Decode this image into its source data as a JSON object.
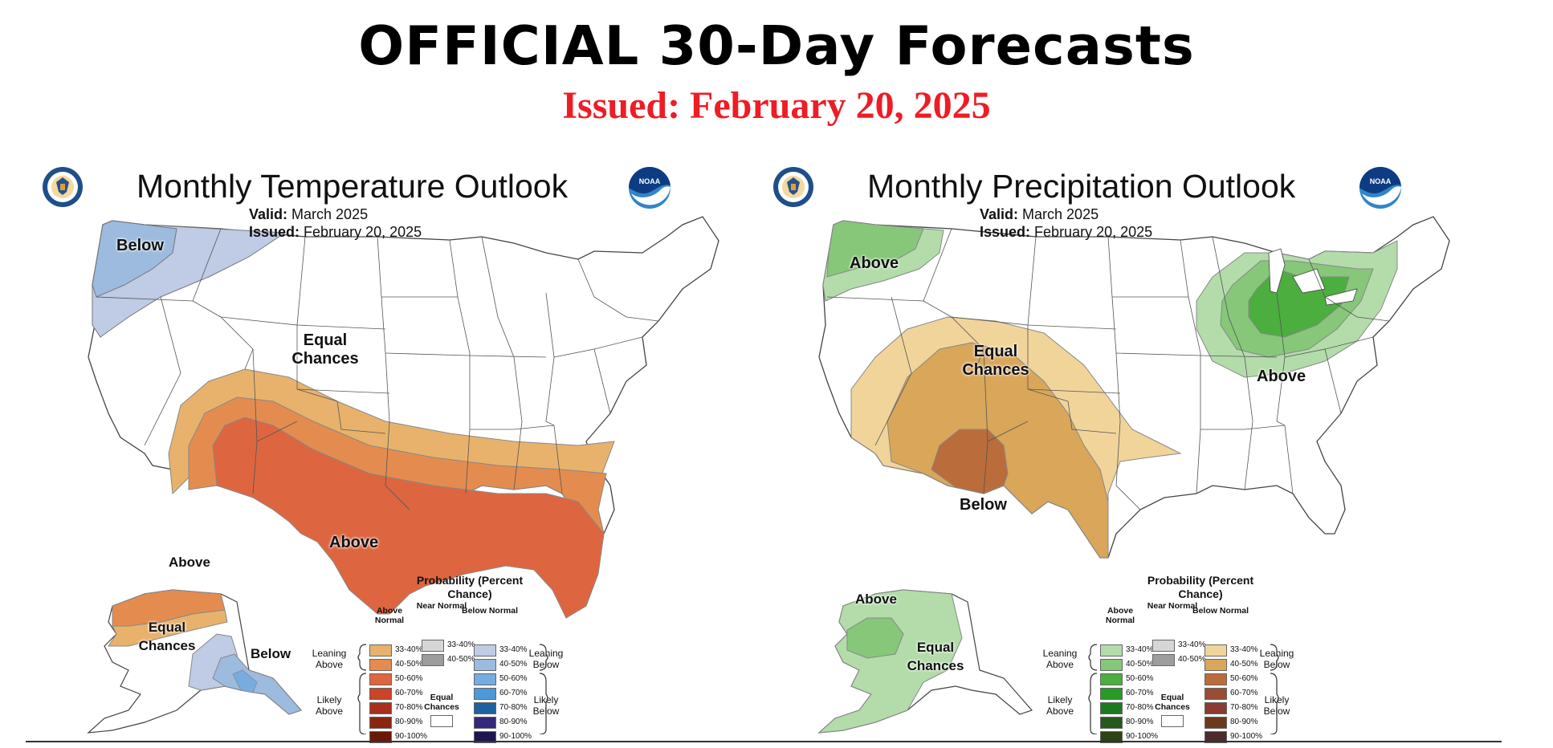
{
  "header": {
    "title": "OFFICIAL 30-Day Forecasts",
    "issued": "Issued: February 20, 2025",
    "issued_color": "#ee1c25"
  },
  "panels": [
    {
      "title": "Monthly Temperature Outlook",
      "valid_label": "Valid:",
      "valid_value": "March 2025",
      "issued_label": "Issued:",
      "issued_value": "February 20, 2025",
      "logos": [
        "doc-seal-icon",
        "noaa-logo-icon"
      ],
      "region_labels": {
        "nw": "Below",
        "center": "Equal Chances",
        "south": "Above",
        "ak_north": "Above",
        "ak_west": "Equal Chances",
        "ak_south": "Below"
      },
      "legend": {
        "title": "Probability (Percent Chance)",
        "col_above": "Above Normal",
        "col_near": "Near Normal",
        "col_below": "Below Normal",
        "leaning_above": "Leaning Above",
        "likely_above": "Likely Above",
        "leaning_below": "Leaning Below",
        "likely_below": "Likely Below",
        "equal": "Equal Chances",
        "above_swatches": [
          {
            "range": "33-40%",
            "color": "#e8b26c"
          },
          {
            "range": "40-50%",
            "color": "#e48c4f"
          },
          {
            "range": "50-60%",
            "color": "#dd6640"
          },
          {
            "range": "60-70%",
            "color": "#c94429"
          },
          {
            "range": "70-80%",
            "color": "#a8301b"
          },
          {
            "range": "80-90%",
            "color": "#8a2510"
          },
          {
            "range": "90-100%",
            "color": "#6b1806"
          }
        ],
        "near_swatches": [
          {
            "range": "33-40%",
            "color": "#d6d6d6"
          },
          {
            "range": "40-50%",
            "color": "#9d9d9d"
          }
        ],
        "below_swatches": [
          {
            "range": "33-40%",
            "color": "#c0cbe5"
          },
          {
            "range": "40-50%",
            "color": "#9cbbde"
          },
          {
            "range": "50-60%",
            "color": "#77ace0"
          },
          {
            "range": "60-70%",
            "color": "#4d98d6"
          },
          {
            "range": "70-80%",
            "color": "#1e62a0"
          },
          {
            "range": "80-90%",
            "color": "#33287a"
          },
          {
            "range": "90-100%",
            "color": "#1d1652"
          }
        ]
      }
    },
    {
      "title": "Monthly Precipitation Outlook",
      "valid_label": "Valid:",
      "valid_value": "March 2025",
      "issued_label": "Issued:",
      "issued_value": "February 20, 2025",
      "logos": [
        "doc-seal-icon",
        "noaa-logo-icon"
      ],
      "region_labels": {
        "nw": "Above",
        "center": "Equal Chances",
        "east": "Above",
        "south": "Below",
        "ak_west": "Above",
        "ak_south": "Equal Chances"
      },
      "legend": {
        "title": "Probability (Percent Chance)",
        "col_above": "Above Normal",
        "col_near": "Near Normal",
        "col_below": "Below Normal",
        "leaning_above": "Leaning Above",
        "likely_above": "Likely Above",
        "leaning_below": "Leaning Below",
        "likely_below": "Likely Below",
        "equal": "Equal Chances",
        "above_swatches": [
          {
            "range": "33-40%",
            "color": "#b3dcaa"
          },
          {
            "range": "40-50%",
            "color": "#86c77a"
          },
          {
            "range": "50-60%",
            "color": "#4bae3e"
          },
          {
            "range": "60-70%",
            "color": "#2a9a27"
          },
          {
            "range": "70-80%",
            "color": "#1b7a1d"
          },
          {
            "range": "80-90%",
            "color": "#26591b"
          },
          {
            "range": "90-100%",
            "color": "#2c4512"
          }
        ],
        "near_swatches": [
          {
            "range": "33-40%",
            "color": "#d6d6d6"
          },
          {
            "range": "40-50%",
            "color": "#9d9d9d"
          }
        ],
        "below_swatches": [
          {
            "range": "33-40%",
            "color": "#f0d49a"
          },
          {
            "range": "40-50%",
            "color": "#d9a65a"
          },
          {
            "range": "50-60%",
            "color": "#bb6c3b"
          },
          {
            "range": "60-70%",
            "color": "#9a4d35"
          },
          {
            "range": "70-80%",
            "color": "#8a3b32"
          },
          {
            "range": "80-90%",
            "color": "#6b3a1c"
          },
          {
            "range": "90-100%",
            "color": "#4d2b2b"
          }
        ]
      }
    }
  ]
}
